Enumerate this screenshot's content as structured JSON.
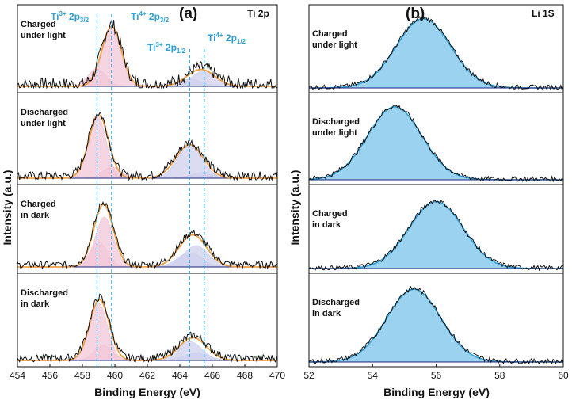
{
  "chart_data": [
    {
      "type": "line",
      "panel_label": "(a)",
      "element": "Ti 2p",
      "xlabel": "Binding Energy (eV)",
      "ylabel": "Intensity (a.u.)",
      "xlim": [
        454,
        470
      ],
      "xticks": [
        "454",
        "456",
        "458",
        "460",
        "462",
        "464",
        "466",
        "468",
        "470"
      ],
      "annotations": [
        {
          "id": "ti3-32",
          "base": "Ti",
          "sup": "3+",
          "mid": " 2p",
          "sub": "3/2",
          "x": 458.9
        },
        {
          "id": "ti4-32",
          "base": "Ti",
          "sup": "4+",
          "mid": " 2p",
          "sub": "3/2",
          "x": 459.8
        },
        {
          "id": "ti3-12",
          "base": "Ti",
          "sup": "3+",
          "mid": " 2p",
          "sub": "1/2",
          "x": 464.6
        },
        {
          "id": "ti4-12",
          "base": "Ti",
          "sup": "4+",
          "mid": " 2p",
          "sub": "1/2",
          "x": 465.5
        }
      ],
      "panels": [
        {
          "label_line1": "Charged",
          "label_line2": "under light",
          "ti3_32": {
            "center": 458.9,
            "amp": 0.25
          },
          "ti4_32": {
            "center": 459.8,
            "amp": 0.85
          },
          "ti3_12": {
            "center": 464.6,
            "amp": 0.1
          },
          "ti4_12": {
            "center": 465.5,
            "amp": 0.22
          },
          "fit_peaks": [
            {
              "center": 459.8,
              "amp": 0.85
            },
            {
              "center": 465.3,
              "amp": 0.24
            }
          ],
          "noise": 0.09
        },
        {
          "label_line1": "Discharged",
          "label_line2": "under light",
          "ti3_32": {
            "center": 458.9,
            "amp": 0.85
          },
          "ti4_32": {
            "center": 459.8,
            "amp": 0.15
          },
          "ti3_12": {
            "center": 464.6,
            "amp": 0.45
          },
          "ti4_12": {
            "center": 465.5,
            "amp": 0.08
          },
          "fit_peaks": [
            {
              "center": 459.0,
              "amp": 0.85
            },
            {
              "center": 464.6,
              "amp": 0.45
            }
          ],
          "noise": 0.06
        },
        {
          "label_line1": "Charged",
          "label_line2": "in dark",
          "ti3_32": {
            "center": 459.0,
            "amp": 0.35
          },
          "ti4_32": {
            "center": 459.35,
            "amp": 0.7
          },
          "ti3_12": {
            "center": 464.6,
            "amp": 0.2
          },
          "ti4_12": {
            "center": 465.0,
            "amp": 0.3
          },
          "fit_peaks": [
            {
              "center": 459.3,
              "amp": 0.88
            },
            {
              "center": 464.8,
              "amp": 0.45
            }
          ],
          "noise": 0.05
        },
        {
          "label_line1": "Discharged",
          "label_line2": "in dark",
          "ti3_32": {
            "center": 459.0,
            "amp": 0.75
          },
          "ti4_32": {
            "center": 459.3,
            "amp": 0.2
          },
          "ti3_12": {
            "center": 464.6,
            "amp": 0.25
          },
          "ti4_12": {
            "center": 465.0,
            "amp": 0.1
          },
          "fit_peaks": [
            {
              "center": 459.05,
              "amp": 0.8
            },
            {
              "center": 464.8,
              "amp": 0.3
            }
          ],
          "noise": 0.05
        }
      ]
    },
    {
      "type": "line",
      "panel_label": "(b)",
      "element": "Li 1S",
      "xlabel": "Binding Energy (eV)",
      "ylabel": "Intensity (a.u.)",
      "xlim": [
        52,
        60
      ],
      "xticks": [
        "52",
        "54",
        "56",
        "58",
        "60"
      ],
      "panels": [
        {
          "label_line1": "Charged",
          "label_line2": "under light",
          "center": 55.6,
          "amp": 0.92,
          "noise": 0.03
        },
        {
          "label_line1": "Discharged",
          "label_line2": "under light",
          "center": 54.7,
          "amp": 0.92,
          "noise": 0.03
        },
        {
          "label_line1": "Charged",
          "label_line2": "in dark",
          "center": 56.0,
          "amp": 0.88,
          "noise": 0.03
        },
        {
          "label_line1": "Discharged",
          "label_line2": "in dark",
          "center": 55.3,
          "amp": 0.9,
          "noise": 0.03
        }
      ]
    }
  ],
  "colors": {
    "ti3_fill": "#f3c7d8",
    "ti4_fill": "#cfd0ee",
    "fit_orange": "#f0a040",
    "raw_black": "#111111",
    "baseline_navy": "#1a237e",
    "li_fill": "#8fcdee",
    "li_fit": "#2aa0d8",
    "dashed_ann": "#2a9fd6",
    "text_ann": "#2a9fd6"
  }
}
